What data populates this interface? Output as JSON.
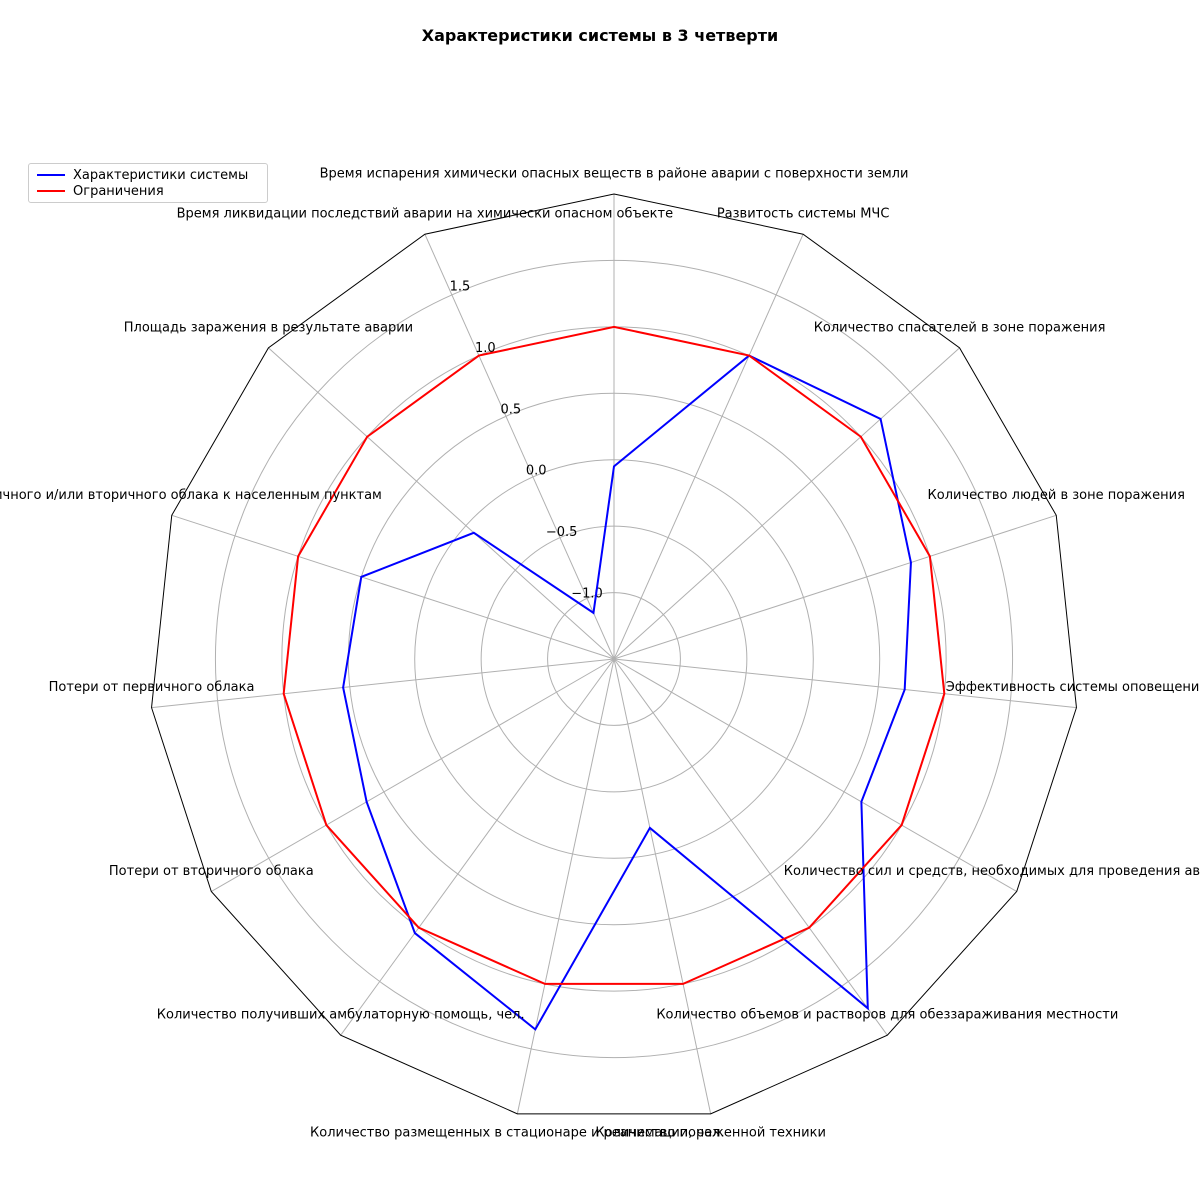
{
  "chart_data": {
    "type": "radar",
    "title": "Характеристики системы в 3 четверти",
    "categories": [
      "Время испарения химически опасных веществ в районе аварии с поверхности земли",
      "Развитость системы МЧС",
      "Количество спасателей в зоне поражения",
      "Количество людей в зоне поражения",
      "Эффективность системы оповещения",
      "Количество сил и средств, необходимых для проведения аварийно",
      "Количество объемов и растворов для обеззараживания местности",
      "Количество пораженной техники",
      "Количество размещенных в стационаре и реанимации, чел.",
      "Количество получивших амбулаторную помощь, чел.",
      "Потери от вторичного облака",
      "Потери от первичного облака",
      "первичного и/или вторичного облака к населенным пунктам",
      "Площадь заражения в результате аварии",
      "Время ликвидации последствий аварии на химически опасном объекте"
    ],
    "series": [
      {
        "name": "Характеристики системы",
        "color": "#0000ff",
        "values": [
          -0.05,
          1.0,
          1.2,
          0.85,
          0.7,
          0.65,
          1.75,
          -0.2,
          1.35,
          1.05,
          0.65,
          0.55,
          0.5,
          -0.08,
          -1.12
        ]
      },
      {
        "name": "Ограничения",
        "color": "#ff0000",
        "values": [
          1.0,
          1.0,
          1.0,
          1.0,
          1.0,
          1.0,
          1.0,
          1.0,
          1.0,
          1.0,
          1.0,
          1.0,
          1.0,
          1.0,
          1.0
        ]
      }
    ],
    "rlim": [
      -1.5,
      2.0
    ],
    "rticks": [
      -1.0,
      -0.5,
      0.0,
      0.5,
      1.0,
      1.5
    ],
    "rtick_labels": [
      "−1.0",
      "−0.5",
      "0.0",
      "0.5",
      "1.0",
      "1.5"
    ],
    "grid": true,
    "legend_position": "top-left",
    "frame_color": "#000000",
    "grid_color": "#b0b0b0"
  }
}
